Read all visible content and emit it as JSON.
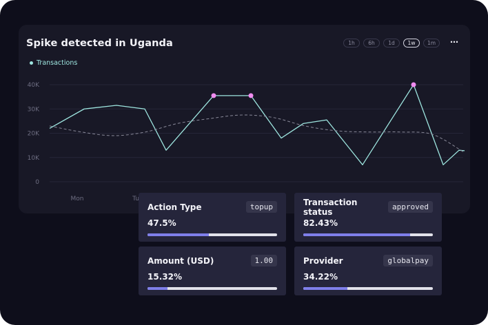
{
  "panel": {
    "title": "Spike detected in Uganda",
    "legend_label": "Transactions",
    "time_ranges": [
      "1h",
      "6h",
      "1d",
      "1w",
      "1m"
    ],
    "active_range": "1w",
    "more_icon": "more-horizontal-icon"
  },
  "chart_data": {
    "type": "line",
    "series": [
      {
        "name": "Transactions",
        "color": "#9ee6e0",
        "values": [
          22000,
          30000,
          31500,
          30000,
          13000,
          35500,
          35500,
          18000,
          24000,
          25500,
          7000,
          40000,
          7000,
          13000,
          12800
        ],
        "highlighted_points": [
          5,
          6,
          11
        ],
        "highlight_color": "#f08cf0"
      },
      {
        "style": "dashed",
        "color": "#8a8a9a",
        "values": [
          23000,
          20500,
          19000,
          20500,
          24000,
          26000,
          27500,
          26500,
          23000,
          21000,
          20500,
          20500,
          19500,
          12000
        ]
      }
    ],
    "y_ticks": [
      "0",
      "10K",
      "20K",
      "30K",
      "40K"
    ],
    "x_labels": [
      "Mon",
      "Tu"
    ],
    "ylim": [
      0,
      40000
    ],
    "grid": true
  },
  "stats": [
    {
      "label": "Action Type",
      "tag": "topup",
      "percent": "47.5%",
      "fraction": 0.475
    },
    {
      "label": "Transaction status",
      "tag": "approved",
      "percent": "82.43%",
      "fraction": 0.8243
    },
    {
      "label": "Amount (USD)",
      "tag": "1.00",
      "percent": "15.32%",
      "fraction": 0.1532
    },
    {
      "label": "Provider",
      "tag": "globalpay",
      "percent": "34.22%",
      "fraction": 0.3422
    }
  ]
}
